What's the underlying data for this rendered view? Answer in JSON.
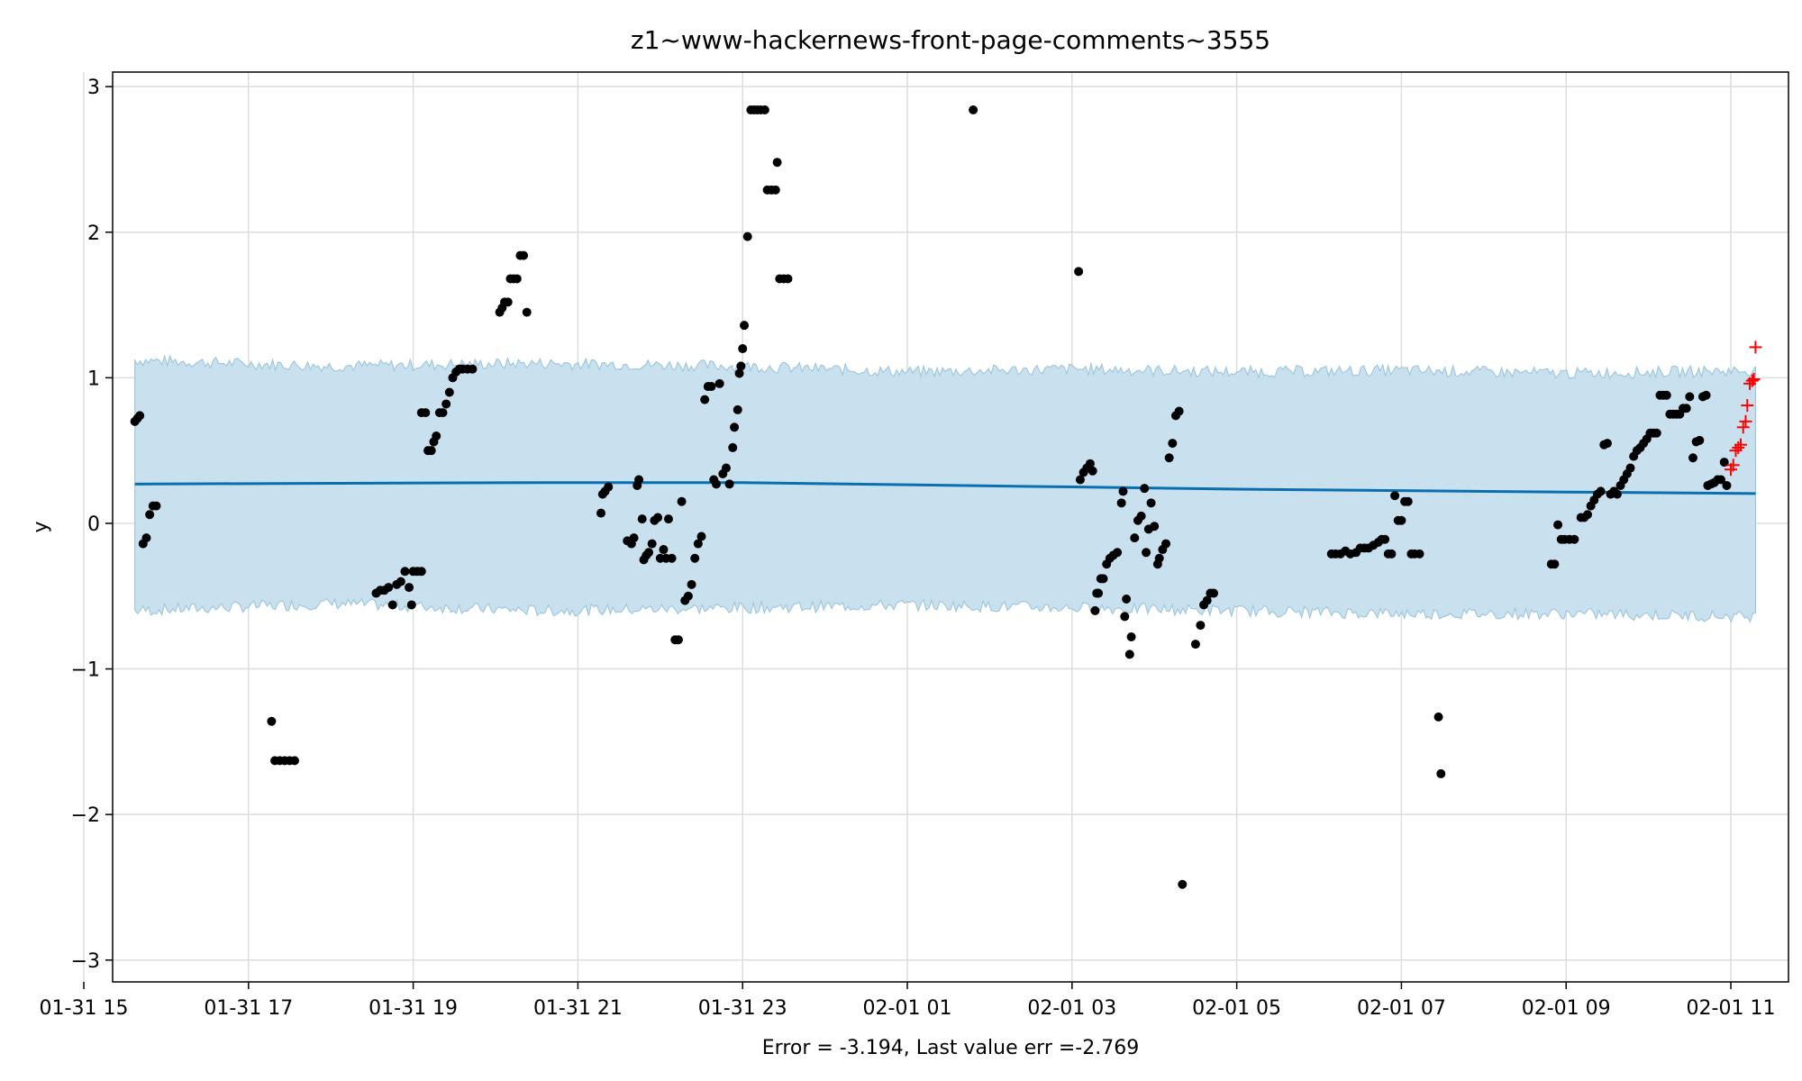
{
  "chart_data": {
    "type": "scatter",
    "title": "z1~www-hackernews-front-page-comments~3555",
    "xlabel": "Error = -3.194, Last value err =-2.769",
    "ylabel": "y",
    "x_unit": "hours",
    "xlim": [
      15.35,
      35.7
    ],
    "ylim": [
      -3.15,
      3.1
    ],
    "grid": true,
    "colors": {
      "band": "#c9e0ee",
      "band_edge": "#9fc8df",
      "forecast": "#0a6fb0",
      "points": "#000000",
      "future": "#ff0000"
    },
    "x_ticks": [
      {
        "x": 15,
        "label": "01-31 15"
      },
      {
        "x": 17,
        "label": "01-31 17"
      },
      {
        "x": 19,
        "label": "01-31 19"
      },
      {
        "x": 21,
        "label": "01-31 21"
      },
      {
        "x": 23,
        "label": "01-31 23"
      },
      {
        "x": 25,
        "label": "02-01 01"
      },
      {
        "x": 27,
        "label": "02-01 03"
      },
      {
        "x": 29,
        "label": "02-01 05"
      },
      {
        "x": 31,
        "label": "02-01 07"
      },
      {
        "x": 33,
        "label": "02-01 09"
      },
      {
        "x": 35,
        "label": "02-01 11"
      }
    ],
    "y_ticks": [
      {
        "y": 3,
        "label": "3"
      },
      {
        "y": 2,
        "label": "2"
      },
      {
        "y": 1,
        "label": "1"
      },
      {
        "y": 0,
        "label": "0"
      },
      {
        "y": -1,
        "label": "−1"
      },
      {
        "y": -2,
        "label": "−2"
      },
      {
        "y": -3,
        "label": "−3"
      }
    ],
    "forecast": {
      "x": [
        15.62,
        18.0,
        20.5,
        23.0,
        25.0,
        27.0,
        29.0,
        31.0,
        33.0,
        35.3
      ],
      "yhat": [
        0.27,
        0.275,
        0.28,
        0.28,
        0.265,
        0.25,
        0.235,
        0.225,
        0.215,
        0.205
      ],
      "upper": [
        1.12,
        1.08,
        1.1,
        1.08,
        1.04,
        1.06,
        1.04,
        1.05,
        1.03,
        1.05
      ],
      "lower": [
        -0.6,
        -0.55,
        -0.6,
        -0.58,
        -0.56,
        -0.58,
        -0.6,
        -0.62,
        -0.62,
        -0.64
      ]
    },
    "observed": [
      [
        15.62,
        0.7
      ],
      [
        15.65,
        0.72
      ],
      [
        15.68,
        0.74
      ],
      [
        15.72,
        -0.14
      ],
      [
        15.76,
        -0.1
      ],
      [
        15.8,
        0.06
      ],
      [
        15.84,
        0.12
      ],
      [
        15.88,
        0.12
      ],
      [
        17.28,
        -1.36
      ],
      [
        17.32,
        -1.63
      ],
      [
        17.38,
        -1.63
      ],
      [
        17.44,
        -1.63
      ],
      [
        17.5,
        -1.63
      ],
      [
        17.56,
        -1.63
      ],
      [
        18.55,
        -0.48
      ],
      [
        18.6,
        -0.46
      ],
      [
        18.65,
        -0.46
      ],
      [
        18.7,
        -0.44
      ],
      [
        18.75,
        -0.56
      ],
      [
        18.8,
        -0.42
      ],
      [
        18.85,
        -0.4
      ],
      [
        18.9,
        -0.33
      ],
      [
        18.95,
        -0.44
      ],
      [
        18.98,
        -0.56
      ],
      [
        19.0,
        -0.33
      ],
      [
        19.05,
        -0.33
      ],
      [
        19.1,
        -0.33
      ],
      [
        19.1,
        0.76
      ],
      [
        19.15,
        0.76
      ],
      [
        19.18,
        0.5
      ],
      [
        19.22,
        0.5
      ],
      [
        19.25,
        0.56
      ],
      [
        19.28,
        0.6
      ],
      [
        19.32,
        0.76
      ],
      [
        19.36,
        0.76
      ],
      [
        19.4,
        0.82
      ],
      [
        19.44,
        0.9
      ],
      [
        19.48,
        1.0
      ],
      [
        19.52,
        1.04
      ],
      [
        19.56,
        1.06
      ],
      [
        19.6,
        1.06
      ],
      [
        19.66,
        1.06
      ],
      [
        19.72,
        1.06
      ],
      [
        20.05,
        1.45
      ],
      [
        20.08,
        1.48
      ],
      [
        20.11,
        1.52
      ],
      [
        20.15,
        1.52
      ],
      [
        20.18,
        1.68
      ],
      [
        20.22,
        1.68
      ],
      [
        20.26,
        1.68
      ],
      [
        20.3,
        1.84
      ],
      [
        20.34,
        1.84
      ],
      [
        20.38,
        1.45
      ],
      [
        21.28,
        0.07
      ],
      [
        21.3,
        0.2
      ],
      [
        21.33,
        0.22
      ],
      [
        21.37,
        0.25
      ],
      [
        21.6,
        -0.12
      ],
      [
        21.65,
        -0.14
      ],
      [
        21.68,
        -0.1
      ],
      [
        21.72,
        0.26
      ],
      [
        21.74,
        0.3
      ],
      [
        21.78,
        0.03
      ],
      [
        21.8,
        -0.25
      ],
      [
        21.83,
        -0.22
      ],
      [
        21.86,
        -0.2
      ],
      [
        21.9,
        -0.14
      ],
      [
        21.93,
        0.02
      ],
      [
        21.97,
        0.04
      ],
      [
        22.0,
        -0.24
      ],
      [
        22.04,
        -0.18
      ],
      [
        22.07,
        -0.24
      ],
      [
        22.1,
        0.03
      ],
      [
        22.14,
        -0.24
      ],
      [
        22.18,
        -0.8
      ],
      [
        22.22,
        -0.8
      ],
      [
        22.26,
        0.15
      ],
      [
        22.3,
        -0.53
      ],
      [
        22.34,
        -0.5
      ],
      [
        22.38,
        -0.42
      ],
      [
        22.42,
        -0.24
      ],
      [
        22.46,
        -0.14
      ],
      [
        22.5,
        -0.09
      ],
      [
        22.54,
        0.85
      ],
      [
        22.58,
        0.94
      ],
      [
        22.62,
        0.94
      ],
      [
        22.65,
        0.3
      ],
      [
        22.68,
        0.27
      ],
      [
        22.72,
        0.96
      ],
      [
        22.76,
        0.34
      ],
      [
        22.8,
        0.38
      ],
      [
        22.84,
        0.27
      ],
      [
        22.88,
        0.52
      ],
      [
        22.9,
        0.66
      ],
      [
        22.94,
        0.78
      ],
      [
        22.96,
        1.03
      ],
      [
        22.98,
        1.08
      ],
      [
        23.0,
        1.2
      ],
      [
        23.02,
        1.36
      ],
      [
        23.06,
        1.97
      ],
      [
        23.1,
        2.84
      ],
      [
        23.14,
        2.84
      ],
      [
        23.18,
        2.84
      ],
      [
        23.22,
        2.84
      ],
      [
        23.27,
        2.84
      ],
      [
        23.3,
        2.29
      ],
      [
        23.35,
        2.29
      ],
      [
        23.4,
        2.29
      ],
      [
        23.42,
        2.48
      ],
      [
        23.45,
        1.68
      ],
      [
        23.5,
        1.68
      ],
      [
        23.55,
        1.68
      ],
      [
        25.8,
        2.84
      ],
      [
        27.08,
        1.73
      ],
      [
        27.1,
        0.3
      ],
      [
        27.14,
        0.35
      ],
      [
        27.18,
        0.38
      ],
      [
        27.22,
        0.41
      ],
      [
        27.25,
        0.36
      ],
      [
        27.28,
        -0.6
      ],
      [
        27.3,
        -0.48
      ],
      [
        27.32,
        -0.48
      ],
      [
        27.35,
        -0.38
      ],
      [
        27.38,
        -0.38
      ],
      [
        27.42,
        -0.28
      ],
      [
        27.46,
        -0.24
      ],
      [
        27.5,
        -0.22
      ],
      [
        27.55,
        -0.2
      ],
      [
        27.6,
        0.14
      ],
      [
        27.62,
        0.22
      ],
      [
        27.64,
        -0.64
      ],
      [
        27.66,
        -0.52
      ],
      [
        27.7,
        -0.9
      ],
      [
        27.72,
        -0.78
      ],
      [
        27.76,
        -0.1
      ],
      [
        27.8,
        0.02
      ],
      [
        27.84,
        0.05
      ],
      [
        27.88,
        0.24
      ],
      [
        27.9,
        -0.2
      ],
      [
        27.93,
        -0.04
      ],
      [
        27.96,
        0.14
      ],
      [
        28.0,
        -0.02
      ],
      [
        28.04,
        -0.28
      ],
      [
        28.06,
        -0.24
      ],
      [
        28.1,
        -0.18
      ],
      [
        28.14,
        -0.14
      ],
      [
        28.18,
        0.45
      ],
      [
        28.22,
        0.55
      ],
      [
        28.26,
        0.74
      ],
      [
        28.3,
        0.77
      ],
      [
        28.34,
        -2.48
      ],
      [
        28.5,
        -0.83
      ],
      [
        28.56,
        -0.7
      ],
      [
        28.6,
        -0.56
      ],
      [
        28.64,
        -0.53
      ],
      [
        28.68,
        -0.48
      ],
      [
        28.72,
        -0.48
      ],
      [
        30.15,
        -0.21
      ],
      [
        30.2,
        -0.21
      ],
      [
        30.26,
        -0.21
      ],
      [
        30.32,
        -0.19
      ],
      [
        30.38,
        -0.21
      ],
      [
        30.45,
        -0.2
      ],
      [
        30.5,
        -0.17
      ],
      [
        30.55,
        -0.17
      ],
      [
        30.6,
        -0.17
      ],
      [
        30.66,
        -0.15
      ],
      [
        30.72,
        -0.13
      ],
      [
        30.76,
        -0.11
      ],
      [
        30.8,
        -0.11
      ],
      [
        30.84,
        -0.21
      ],
      [
        30.88,
        -0.21
      ],
      [
        30.92,
        0.19
      ],
      [
        30.96,
        0.02
      ],
      [
        31.0,
        0.02
      ],
      [
        31.04,
        0.15
      ],
      [
        31.08,
        0.15
      ],
      [
        31.12,
        -0.21
      ],
      [
        31.16,
        -0.21
      ],
      [
        31.22,
        -0.21
      ],
      [
        31.45,
        -1.33
      ],
      [
        31.48,
        -1.72
      ],
      [
        32.82,
        -0.28
      ],
      [
        32.86,
        -0.28
      ],
      [
        32.9,
        -0.01
      ],
      [
        32.94,
        -0.11
      ],
      [
        32.98,
        -0.11
      ],
      [
        33.04,
        -0.11
      ],
      [
        33.1,
        -0.11
      ],
      [
        33.18,
        0.04
      ],
      [
        33.22,
        0.04
      ],
      [
        33.26,
        0.06
      ],
      [
        33.3,
        0.12
      ],
      [
        33.34,
        0.16
      ],
      [
        33.38,
        0.2
      ],
      [
        33.42,
        0.22
      ],
      [
        33.46,
        0.54
      ],
      [
        33.5,
        0.55
      ],
      [
        33.54,
        0.2
      ],
      [
        33.58,
        0.22
      ],
      [
        33.62,
        0.2
      ],
      [
        33.66,
        0.26
      ],
      [
        33.7,
        0.3
      ],
      [
        33.74,
        0.34
      ],
      [
        33.78,
        0.38
      ],
      [
        33.82,
        0.46
      ],
      [
        33.86,
        0.5
      ],
      [
        33.9,
        0.52
      ],
      [
        33.94,
        0.55
      ],
      [
        33.98,
        0.58
      ],
      [
        34.02,
        0.62
      ],
      [
        34.06,
        0.62
      ],
      [
        34.1,
        0.62
      ],
      [
        34.14,
        0.88
      ],
      [
        34.18,
        0.88
      ],
      [
        34.22,
        0.88
      ],
      [
        34.26,
        0.75
      ],
      [
        34.3,
        0.75
      ],
      [
        34.34,
        0.75
      ],
      [
        34.38,
        0.75
      ],
      [
        34.42,
        0.79
      ],
      [
        34.46,
        0.79
      ],
      [
        34.5,
        0.87
      ],
      [
        34.54,
        0.45
      ],
      [
        34.58,
        0.56
      ],
      [
        34.62,
        0.57
      ],
      [
        34.66,
        0.87
      ],
      [
        34.7,
        0.88
      ],
      [
        34.72,
        0.26
      ],
      [
        34.76,
        0.27
      ],
      [
        34.8,
        0.28
      ],
      [
        34.84,
        0.3
      ],
      [
        34.88,
        0.3
      ],
      [
        34.92,
        0.42
      ],
      [
        34.95,
        0.26
      ]
    ],
    "future": [
      [
        35.0,
        0.37
      ],
      [
        35.03,
        0.4
      ],
      [
        35.06,
        0.5
      ],
      [
        35.09,
        0.52
      ],
      [
        35.12,
        0.54
      ],
      [
        35.15,
        0.66
      ],
      [
        35.18,
        0.7
      ],
      [
        35.2,
        0.81
      ],
      [
        35.23,
        0.96
      ],
      [
        35.26,
        0.98
      ],
      [
        35.28,
        0.99
      ],
      [
        35.3,
        1.21
      ]
    ]
  }
}
